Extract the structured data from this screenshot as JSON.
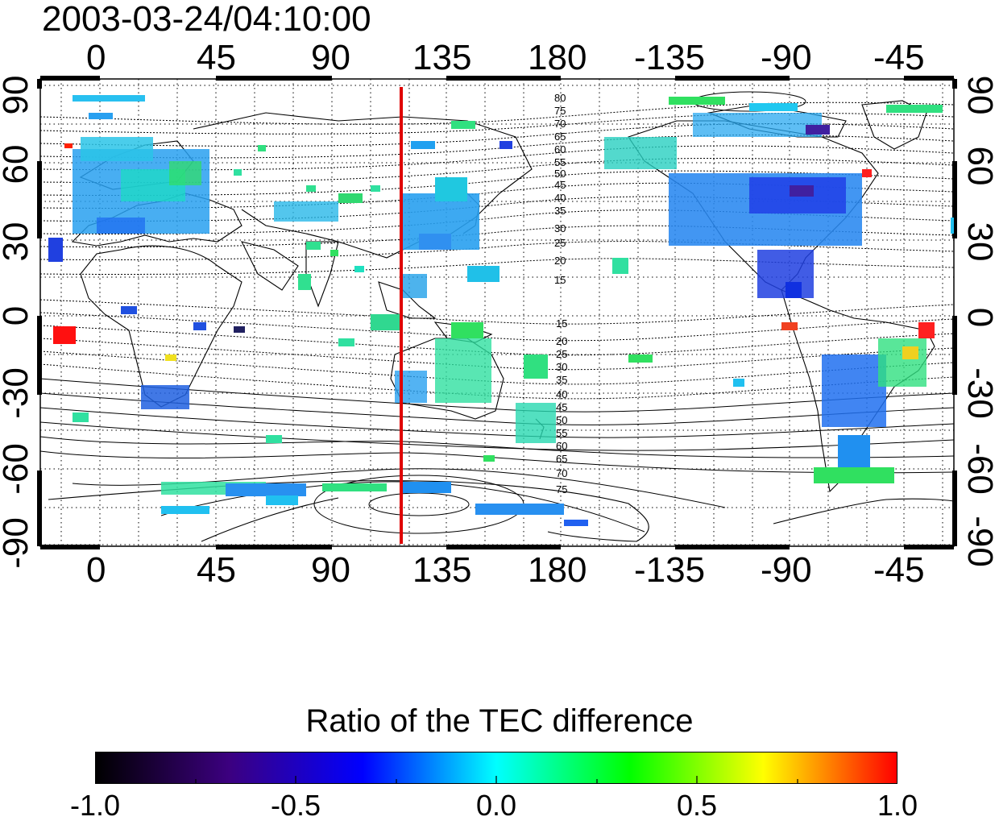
{
  "timestamp": "2003-03-24/04:10:00",
  "x_ticks": [
    "0",
    "45",
    "90",
    "135",
    "180",
    "-135",
    "-90",
    "-45"
  ],
  "y_ticks": [
    "90",
    "60",
    "30",
    "0",
    "-30",
    "-60",
    "-90"
  ],
  "north_contour_labels": [
    "80",
    "75",
    "70",
    "65",
    "60",
    "55",
    "50",
    "45",
    "40",
    "35",
    "30",
    "25",
    "20",
    "15"
  ],
  "south_contour_labels": [
    "15",
    "20",
    "25",
    "30",
    "35",
    "40",
    "45",
    "50",
    "55",
    "60",
    "65",
    "70",
    "75"
  ],
  "meridian_marker": {
    "longitude": 120,
    "color": "#e00000"
  },
  "colorbar": {
    "title": "Ratio of the TEC difference",
    "ticks": [
      "-1.0",
      "-0.5",
      "0.0",
      "0.5",
      "1.0"
    ],
    "range": [
      -1.0,
      1.0
    ],
    "colors": [
      "#000000",
      "#3c0080",
      "#0000ff",
      "#00ffff",
      "#00ff00",
      "#ffff00",
      "#ff0000"
    ]
  },
  "map": {
    "projection": "equirectangular",
    "lon_range": [
      -15,
      345
    ],
    "lat_range": [
      -90,
      90
    ],
    "grid": "dotted, 15 degrees",
    "data_regions": [
      "Europe",
      "East Asia / Japan",
      "North America",
      "South America",
      "Australia",
      "Southern Africa",
      "Antarctic coast"
    ]
  }
}
